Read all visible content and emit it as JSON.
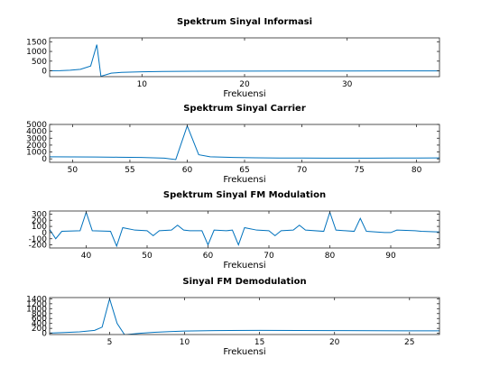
{
  "colors": {
    "line": "#0072bd",
    "axis": "#262626",
    "background": "#ffffff"
  },
  "chart_data": [
    {
      "type": "line",
      "title": "Spektrum Sinyal Informasi",
      "xlabel": "Frekuensi",
      "ylabel": "",
      "xlim": [
        1,
        39
      ],
      "ylim": [
        -300,
        1700
      ],
      "xticks": [
        10,
        20,
        30
      ],
      "yticks": [
        0,
        500,
        1000,
        1500
      ],
      "grid": false,
      "series": [
        {
          "x": [
            1,
            2,
            3,
            4,
            5,
            5.6,
            6,
            7,
            8,
            10,
            12,
            15,
            20,
            25,
            30,
            35,
            39
          ],
          "y": [
            5,
            10,
            30,
            80,
            250,
            1350,
            -280,
            -120,
            -80,
            -50,
            -30,
            -20,
            -15,
            -10,
            -8,
            -5,
            -4
          ]
        }
      ]
    },
    {
      "type": "line",
      "title": "Spektrum Sinyal Carrier",
      "xlabel": "Frekuensi",
      "ylabel": "",
      "xlim": [
        48,
        82
      ],
      "ylim": [
        -500,
        5000
      ],
      "xticks": [
        50,
        55,
        60,
        65,
        70,
        75,
        80
      ],
      "yticks": [
        0,
        1000,
        2000,
        3000,
        4000,
        5000
      ],
      "grid": false,
      "series": [
        {
          "x": [
            48,
            50,
            52,
            54,
            56,
            58,
            59,
            60,
            61,
            62,
            64,
            66,
            68,
            70,
            72,
            74,
            76,
            78,
            80,
            82
          ],
          "y": [
            300,
            290,
            270,
            240,
            200,
            100,
            -100,
            4800,
            600,
            300,
            200,
            150,
            130,
            120,
            110,
            110,
            110,
            120,
            130,
            140
          ]
        }
      ]
    },
    {
      "type": "line",
      "title": "Spektrum Sinyal FM Modulation",
      "xlabel": "Frekuensi",
      "ylabel": "",
      "xlim": [
        34,
        98
      ],
      "ylim": [
        -250,
        350
      ],
      "xticks": [
        40,
        50,
        60,
        70,
        80,
        90
      ],
      "yticks": [
        -200,
        -100,
        0,
        100,
        200,
        300
      ],
      "grid": false,
      "series": [
        {
          "x": [
            34,
            35,
            36,
            39,
            40,
            41,
            44,
            45,
            46,
            48,
            50,
            51,
            52,
            54,
            55,
            56,
            57,
            59,
            60,
            61,
            63,
            64,
            65,
            66,
            68,
            70,
            71,
            72,
            74,
            75,
            76,
            79,
            80,
            81,
            84,
            85,
            86,
            89,
            90,
            91,
            94,
            95,
            98
          ],
          "y": [
            50,
            -100,
            20,
            30,
            330,
            30,
            20,
            -220,
            80,
            40,
            30,
            -50,
            30,
            40,
            120,
            40,
            30,
            30,
            -200,
            40,
            30,
            40,
            -200,
            80,
            40,
            30,
            -50,
            30,
            40,
            120,
            40,
            20,
            330,
            40,
            20,
            230,
            20,
            0,
            0,
            40,
            30,
            20,
            10
          ]
        }
      ]
    },
    {
      "type": "line",
      "title": "Sinyal FM Demodulation",
      "xlabel": "Frekuensi",
      "ylabel": "",
      "xlim": [
        1,
        27
      ],
      "ylim": [
        -50,
        1450
      ],
      "xticks": [
        5,
        10,
        15,
        20,
        25
      ],
      "yticks": [
        0,
        200,
        400,
        600,
        800,
        1000,
        1200,
        1400
      ],
      "grid": false,
      "series": [
        {
          "x": [
            1,
            2,
            3,
            4,
            4.5,
            5,
            5.5,
            6,
            7,
            8,
            9,
            10,
            12,
            15,
            20,
            25,
            27
          ],
          "y": [
            10,
            30,
            60,
            120,
            250,
            1400,
            400,
            -60,
            0,
            40,
            70,
            90,
            110,
            120,
            110,
            100,
            100
          ]
        }
      ]
    }
  ]
}
